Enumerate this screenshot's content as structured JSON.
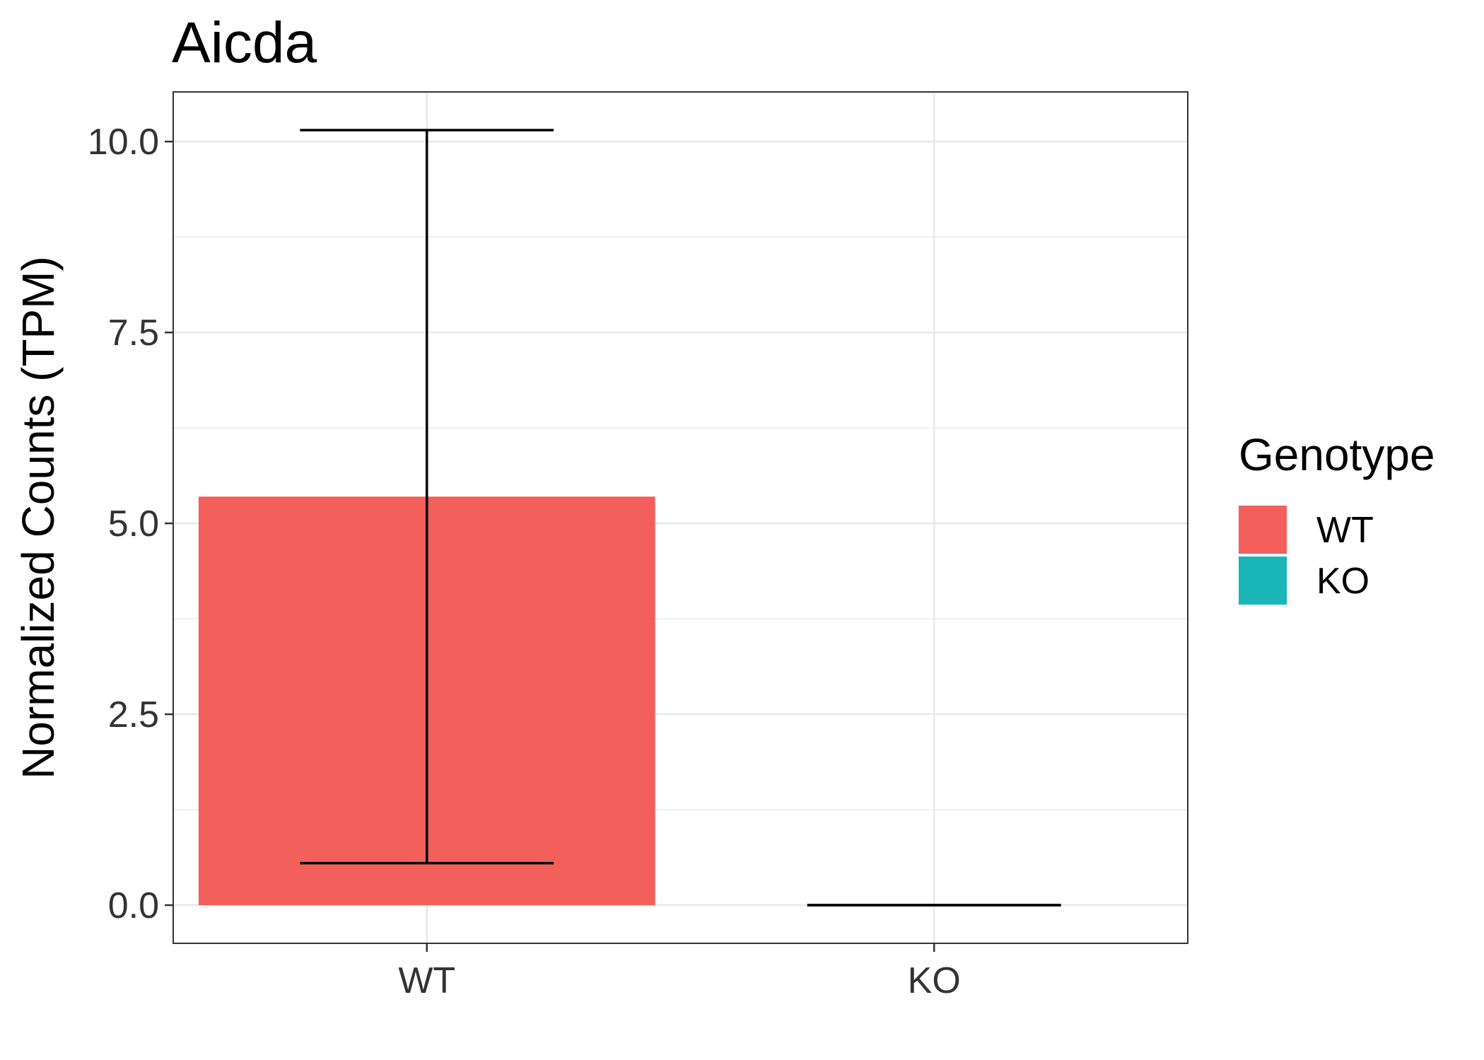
{
  "chart_data": {
    "type": "bar",
    "title": "Aicda",
    "xlabel": "",
    "ylabel": "Normalized Counts (TPM)",
    "categories": [
      "WT",
      "KO"
    ],
    "values": [
      5.35,
      0.0
    ],
    "error_low": [
      0.55,
      0.0
    ],
    "error_high": [
      10.15,
      0.0
    ],
    "colors": [
      "#F35F5B",
      "#19B5B9"
    ],
    "ylim": [
      -0.5,
      10.65
    ],
    "yticks": [
      0.0,
      2.5,
      5.0,
      7.5,
      10.0
    ],
    "ytick_labels": [
      "0.0",
      "2.5",
      "5.0",
      "7.5",
      "10.0"
    ],
    "grid": true,
    "legend": {
      "title": "Genotype",
      "position": "right",
      "items": [
        {
          "label": "WT",
          "color": "#F35F5B"
        },
        {
          "label": "KO",
          "color": "#19B5B9"
        }
      ]
    }
  }
}
